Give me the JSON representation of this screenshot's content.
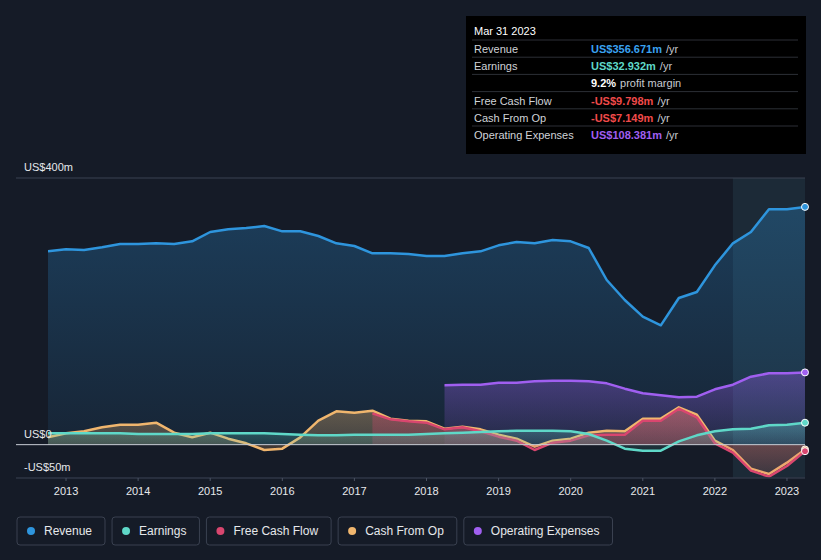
{
  "chart_data": {
    "type": "area",
    "x": [
      2012.75,
      2013,
      2013.25,
      2013.5,
      2013.75,
      2014,
      2014.25,
      2014.5,
      2014.75,
      2015,
      2015.25,
      2015.5,
      2015.75,
      2016,
      2016.25,
      2016.5,
      2016.75,
      2017,
      2017.25,
      2017.5,
      2017.75,
      2018,
      2018.25,
      2018.5,
      2018.75,
      2019,
      2019.25,
      2019.5,
      2019.75,
      2020,
      2020.25,
      2020.5,
      2020.75,
      2021,
      2021.25,
      2021.5,
      2021.75,
      2022,
      2022.25,
      2022.5,
      2022.75,
      2023,
      2023.25
    ],
    "xlim": [
      2012.75,
      2023.25
    ],
    "xticks": [
      2013,
      2014,
      2015,
      2016,
      2017,
      2018,
      2019,
      2020,
      2021,
      2022,
      2023
    ],
    "ylim": [
      -50,
      400
    ],
    "yticks": [
      {
        "value": -50,
        "label": "-US$50m"
      },
      {
        "value": 0,
        "label": "US$0"
      },
      {
        "value": 400,
        "label": "US$400m"
      }
    ],
    "grid": true,
    "legend": "bottom",
    "series": [
      {
        "name": "Revenue",
        "color": "#2e95dd",
        "values": [
          290,
          293,
          292,
          296,
          301,
          301,
          302,
          301,
          305,
          319,
          323,
          325,
          328,
          320,
          320,
          313,
          302,
          298,
          287,
          287,
          286,
          283,
          283,
          287,
          290,
          299,
          304,
          302,
          307,
          305,
          295,
          247,
          217,
          192,
          179,
          220,
          229,
          269,
          302,
          319,
          353,
          353,
          356.671
        ]
      },
      {
        "name": "Earnings",
        "color": "#5fd8c8",
        "values": [
          17,
          17,
          17,
          17,
          17,
          16,
          16,
          16,
          16,
          17,
          17,
          17,
          17,
          16,
          15,
          14,
          14,
          15,
          15,
          15,
          15,
          16,
          17,
          18,
          19,
          20,
          21,
          21,
          21,
          20,
          16,
          6,
          -6,
          -9,
          -9,
          5,
          14,
          20,
          23,
          24,
          29,
          30,
          32.932
        ]
      },
      {
        "name": "Free Cash Flow",
        "color": "#d9466f",
        "values": [
          null,
          null,
          null,
          null,
          null,
          null,
          null,
          null,
          null,
          null,
          null,
          null,
          null,
          null,
          null,
          null,
          null,
          null,
          47,
          38,
          35,
          33,
          23,
          26,
          20,
          12,
          6,
          -8,
          3,
          6,
          14,
          15,
          15,
          36,
          36,
          54,
          41,
          2,
          -12,
          -39,
          -48,
          -32,
          -9.798
        ]
      },
      {
        "name": "Cash From Op",
        "color": "#f0b66e",
        "values": [
          11,
          17,
          20,
          26,
          30,
          30,
          33,
          18,
          11,
          18,
          9,
          2,
          -8,
          -6,
          11,
          36,
          50,
          48,
          51,
          39,
          36,
          35,
          24,
          27,
          23,
          15,
          9,
          -3,
          6,
          9,
          18,
          21,
          20,
          39,
          39,
          56,
          45,
          6,
          -8,
          -36,
          -44,
          -27,
          -7.149
        ]
      },
      {
        "name": "Operating Expenses",
        "color": "#a05ff0",
        "values": [
          null,
          null,
          null,
          null,
          null,
          null,
          null,
          null,
          null,
          null,
          null,
          null,
          null,
          null,
          null,
          null,
          null,
          null,
          null,
          null,
          null,
          null,
          89,
          90,
          90,
          93,
          93,
          95,
          96,
          96,
          95,
          92,
          84,
          77,
          74,
          71,
          72,
          83,
          90,
          102,
          107,
          107,
          108.381
        ]
      }
    ]
  },
  "tooltip": {
    "title": "Mar 31 2023",
    "rows": [
      {
        "label": "Revenue",
        "value": "US$356.671m",
        "suffix": "/yr"
      },
      {
        "label": "Earnings",
        "value": "US$32.932m",
        "suffix": "/yr"
      },
      {
        "value": "9.2%",
        "suffix": "profit margin"
      },
      {
        "label": "Free Cash Flow",
        "value": "-US$9.798m",
        "suffix": "/yr"
      },
      {
        "label": "Cash From Op",
        "value": "-US$7.149m",
        "suffix": "/yr"
      },
      {
        "label": "Operating Expenses",
        "value": "US$108.381m",
        "suffix": "/yr"
      }
    ]
  }
}
